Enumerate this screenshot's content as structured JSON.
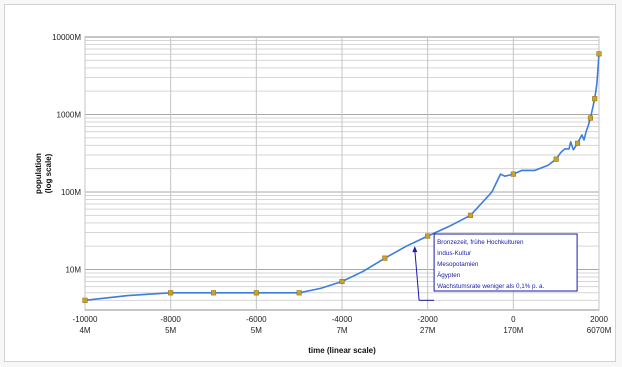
{
  "chart_data": {
    "type": "line",
    "xlabel": "time (linear scale)",
    "ylabel": "population (log scale)",
    "scale": {
      "x": "linear",
      "y": "log"
    },
    "xlim": [
      -10000,
      2000
    ],
    "ylim": [
      3000000,
      10000000000
    ],
    "grid": true,
    "x_ticks": [
      {
        "value": -10000,
        "label": "-10000",
        "sublabel": "4M"
      },
      {
        "value": -8000,
        "label": "-8000",
        "sublabel": "5M"
      },
      {
        "value": -6000,
        "label": "-6000",
        "sublabel": "5M"
      },
      {
        "value": -4000,
        "label": "-4000",
        "sublabel": "7M"
      },
      {
        "value": -2000,
        "label": "-2000",
        "sublabel": "27M"
      },
      {
        "value": 0,
        "label": "0",
        "sublabel": "170M"
      },
      {
        "value": 2000,
        "label": "2000",
        "sublabel": "6070M"
      }
    ],
    "y_ticks": [
      {
        "value": 10000000,
        "label": "10M"
      },
      {
        "value": 100000000,
        "label": "100M"
      },
      {
        "value": 1000000000,
        "label": "1000M"
      },
      {
        "value": 10000000000,
        "label": "10000M"
      }
    ],
    "series": [
      {
        "color": "#3b7ddd",
        "x": [
          -10000,
          -9000,
          -8000,
          -7000,
          -6000,
          -5000,
          -4500,
          -4000,
          -3500,
          -3000,
          -2500,
          -2000,
          -1500,
          -1000,
          -500,
          -300,
          -200,
          0,
          200,
          500,
          800,
          1000,
          1100,
          1200,
          1300,
          1340,
          1400,
          1500,
          1600,
          1650,
          1700,
          1750,
          1800,
          1850,
          1900,
          1950,
          2000
        ],
        "y": [
          4000000,
          4600000,
          5000000,
          5000000,
          5000000,
          5000000,
          5700000,
          7000000,
          9500000,
          14000000,
          20000000,
          27000000,
          36000000,
          50000000,
          100000000,
          170000000,
          160000000,
          170000000,
          190000000,
          190000000,
          220000000,
          265000000,
          320000000,
          360000000,
          360000000,
          443000000,
          350000000,
          425000000,
          545000000,
          470000000,
          600000000,
          720000000,
          900000000,
          1200000000,
          1600000000,
          2500000000,
          6070000000
        ]
      }
    ],
    "markers": {
      "color": "#c9a227",
      "x": [
        -10000,
        -8000,
        -7000,
        -6000,
        -5000,
        -4000,
        -3000,
        -2000,
        -1000,
        0,
        1000,
        1500,
        1800,
        1900,
        2000
      ],
      "y": [
        4000000,
        5000000,
        5000000,
        5000000,
        5000000,
        7000000,
        14000000,
        27000000,
        50000000,
        170000000,
        265000000,
        425000000,
        900000000,
        1600000000,
        6070000000
      ]
    },
    "annotations": [
      {
        "lines": [
          "Bronzezeit, frühe Hochkulturen",
          "Indus-Kultur",
          "Mesopotamien",
          "Ägypten",
          "Wachstumsrate weniger als 0,1% p. a."
        ],
        "pointer_x": -2300,
        "pointer_y": 20000000,
        "anchor_x": -2200,
        "anchor_y": 4000000
      }
    ]
  }
}
